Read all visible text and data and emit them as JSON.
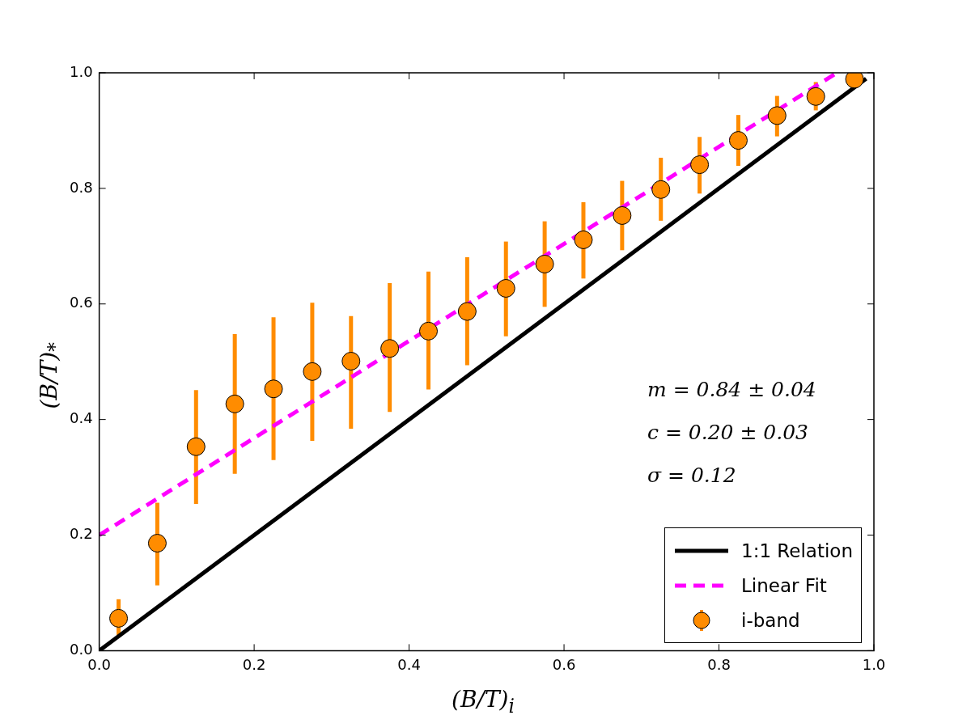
{
  "chart_data": {
    "type": "scatter",
    "xlabel": "(B/T)$_{i}$",
    "ylabel": "(B/T)$_{*}$",
    "xlim": [
      0,
      1
    ],
    "ylim": [
      0,
      1
    ],
    "xticks": [
      {
        "value": 0,
        "label": "0.0"
      },
      {
        "value": 0.2,
        "label": "0.2"
      },
      {
        "value": 0.4,
        "label": "0.4"
      },
      {
        "value": 0.6,
        "label": "0.6"
      },
      {
        "value": 0.8,
        "label": "0.8"
      },
      {
        "value": 1,
        "label": "1.0"
      }
    ],
    "yticks": [
      {
        "value": 0,
        "label": "0.0"
      },
      {
        "value": 0.2,
        "label": "0.2"
      },
      {
        "value": 0.4,
        "label": "0.4"
      },
      {
        "value": 0.6,
        "label": "0.6"
      },
      {
        "value": 0.8,
        "label": "0.8"
      },
      {
        "value": 1,
        "label": "1.0"
      }
    ],
    "grid": false,
    "legend": "bottom right",
    "annotations": [
      "m = 0.84 ± 0.04",
      "c = 0.20 ± 0.03",
      "σ = 0.12"
    ],
    "series": [
      {
        "name": "1:1 Relation",
        "type": "line",
        "color": "#000000",
        "line_style": "solid",
        "marker": "none",
        "x": [
          0,
          0.99
        ],
        "values": [
          0,
          0.99
        ]
      },
      {
        "name": "Linear Fit",
        "type": "line",
        "color": "#ff00ff",
        "line_style": "dashed",
        "marker": "none",
        "x": [
          0,
          0.95
        ],
        "values": [
          0.2,
          0.998
        ]
      },
      {
        "name": "i-band",
        "type": "scatter",
        "color": "#ff8c00",
        "marker": "circle",
        "x": [
          0.025,
          0.075,
          0.125,
          0.175,
          0.225,
          0.275,
          0.325,
          0.375,
          0.425,
          0.475,
          0.525,
          0.575,
          0.625,
          0.675,
          0.725,
          0.775,
          0.825,
          0.875,
          0.925,
          0.975
        ],
        "values": [
          0.056,
          0.186,
          0.353,
          0.427,
          0.453,
          0.483,
          0.501,
          0.523,
          0.553,
          0.587,
          0.627,
          0.669,
          0.711,
          0.753,
          0.798,
          0.841,
          0.883,
          0.926,
          0.959,
          0.989
        ],
        "errors": [
          [
            0.026,
            0.089
          ],
          [
            0.113,
            0.256
          ],
          [
            0.254,
            0.451
          ],
          [
            0.306,
            0.548
          ],
          [
            0.33,
            0.577
          ],
          [
            0.363,
            0.602
          ],
          [
            0.384,
            0.579
          ],
          [
            0.413,
            0.636
          ],
          [
            0.452,
            0.656
          ],
          [
            0.494,
            0.681
          ],
          [
            0.544,
            0.708
          ],
          [
            0.595,
            0.743
          ],
          [
            0.644,
            0.776
          ],
          [
            0.693,
            0.813
          ],
          [
            0.744,
            0.853
          ],
          [
            0.791,
            0.889
          ],
          [
            0.839,
            0.927
          ],
          [
            0.89,
            0.96
          ],
          [
            0.935,
            0.984
          ],
          null
        ]
      }
    ]
  }
}
